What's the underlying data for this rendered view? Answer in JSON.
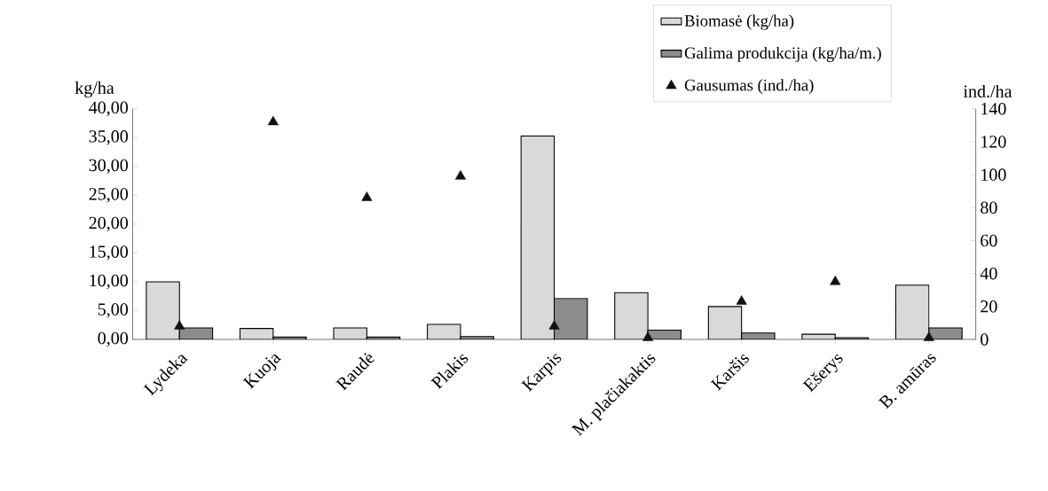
{
  "chart_data": {
    "type": "bar",
    "ylabel": "kg/ha",
    "y2label": "ind./ha",
    "categories": [
      "Lydeka",
      "Kuoja",
      "Raudė",
      "Plakis",
      "Karpis",
      "M. plačiakaktis",
      "Karšis",
      "Ešerys",
      "B. amūras"
    ],
    "series": [
      {
        "name": "Biomasė (kg/ha)",
        "color": "#d9d9d9",
        "values": [
          10.0,
          1.9,
          2.0,
          2.6,
          35.3,
          8.1,
          5.7,
          0.9,
          9.4
        ]
      },
      {
        "name": "Galima produkcija (kg/ha/m.)",
        "color": "#8c8c8c",
        "values": [
          2.0,
          0.4,
          0.4,
          0.5,
          7.1,
          1.6,
          1.1,
          0.3,
          2.0
        ]
      },
      {
        "name": "Gausumas (ind./ha)",
        "type": "scatter",
        "axis": "y2",
        "marker": "triangle",
        "color": "#111111",
        "x": [
          "Lydeka",
          "Kuoja",
          "Raudė",
          "Plakis",
          "Karpis",
          "M. plačiakaktis",
          "Karšis",
          "Ešerys",
          "B. amūras"
        ],
        "values": [
          8,
          132,
          86,
          99,
          8,
          1,
          23,
          35,
          1
        ]
      }
    ],
    "ylim": [
      0,
      40
    ],
    "yticks": [
      {
        "value": 0,
        "label": "0,00"
      },
      {
        "value": 5,
        "label": "5,00"
      },
      {
        "value": 10,
        "label": "10,00"
      },
      {
        "value": 15,
        "label": "15,00"
      },
      {
        "value": 20,
        "label": "20,00"
      },
      {
        "value": 25,
        "label": "25,00"
      },
      {
        "value": 30,
        "label": "30,00"
      },
      {
        "value": 35,
        "label": "35,00"
      },
      {
        "value": 40,
        "label": "40,00"
      }
    ],
    "y2lim": [
      0,
      140
    ],
    "y2ticks": [
      0,
      20,
      40,
      60,
      80,
      100,
      120,
      140
    ],
    "legend": "top right"
  }
}
